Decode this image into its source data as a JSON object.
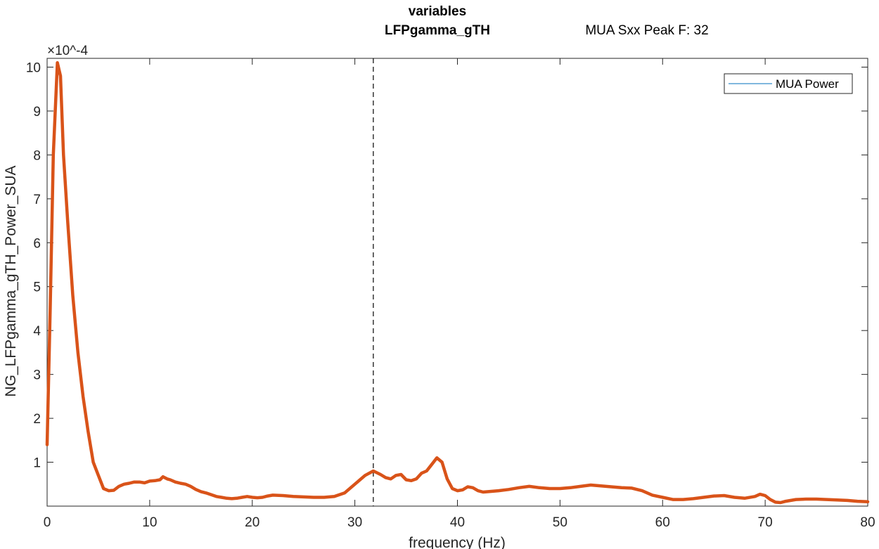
{
  "chart_data": {
    "type": "line",
    "title_lines": [
      "variables",
      "LFPgamma_gTH"
    ],
    "subtitle": "MUA Sxx Peak F: 32",
    "xlabel": "frequency (Hz)",
    "ylabel": "NG_LFPgamma_gTH_Power_SUA",
    "y_exponent_label": "×10^-4",
    "xlim": [
      0,
      80
    ],
    "ylim": [
      0,
      10.2
    ],
    "x_ticks": [
      0,
      10,
      20,
      30,
      40,
      50,
      60,
      70,
      80
    ],
    "y_ticks": [
      1,
      2,
      3,
      4,
      5,
      6,
      7,
      8,
      9,
      10
    ],
    "grid": false,
    "legend_position": "top-right",
    "legend": [
      {
        "label": "MUA Power",
        "color": "#0072BD"
      }
    ],
    "peak_marker_x": 31.8,
    "series": [
      {
        "color": "#D95319",
        "x": [
          0,
          0.3,
          0.6,
          1.0,
          1.3,
          1.6,
          2.0,
          2.5,
          3.0,
          3.5,
          4.0,
          4.5,
          5.0,
          5.5,
          6.0,
          6.5,
          7.0,
          7.5,
          8.0,
          8.5,
          9.0,
          9.5,
          10.0,
          10.5,
          11.0,
          11.3,
          11.7,
          12.0,
          12.5,
          13.0,
          13.5,
          14.0,
          14.5,
          15.0,
          15.5,
          16.0,
          16.5,
          17.0,
          17.5,
          18.0,
          18.5,
          19.0,
          19.5,
          20.0,
          20.5,
          21.0,
          21.5,
          22.0,
          23.0,
          24.0,
          25.0,
          26.0,
          27.0,
          28.0,
          29.0,
          30.0,
          31.0,
          31.8,
          32.5,
          33.0,
          33.5,
          34.0,
          34.5,
          35.0,
          35.5,
          36.0,
          36.5,
          37.0,
          37.5,
          38.0,
          38.5,
          39.0,
          39.5,
          40.0,
          40.5,
          41.0,
          41.5,
          42.0,
          42.5,
          43.0,
          44.0,
          45.0,
          46.0,
          47.0,
          48.0,
          49.0,
          50.0,
          51.0,
          52.0,
          53.0,
          54.0,
          55.0,
          56.0,
          57.0,
          58.0,
          59.0,
          60.0,
          61.0,
          62.0,
          63.0,
          64.0,
          65.0,
          66.0,
          67.0,
          68.0,
          69.0,
          69.5,
          70.0,
          70.5,
          71.0,
          71.5,
          72.0,
          73.0,
          74.0,
          75.0,
          76.0,
          77.0,
          78.0,
          79.0,
          80.0
        ],
        "y": [
          1.4,
          4.5,
          8.0,
          10.1,
          9.8,
          8.0,
          6.5,
          4.8,
          3.5,
          2.5,
          1.7,
          1.0,
          0.7,
          0.4,
          0.35,
          0.36,
          0.45,
          0.5,
          0.52,
          0.55,
          0.55,
          0.53,
          0.57,
          0.58,
          0.6,
          0.67,
          0.62,
          0.6,
          0.55,
          0.52,
          0.5,
          0.45,
          0.38,
          0.33,
          0.3,
          0.26,
          0.22,
          0.2,
          0.18,
          0.17,
          0.18,
          0.2,
          0.22,
          0.2,
          0.19,
          0.2,
          0.23,
          0.25,
          0.24,
          0.22,
          0.21,
          0.2,
          0.2,
          0.22,
          0.3,
          0.5,
          0.7,
          0.8,
          0.72,
          0.65,
          0.62,
          0.7,
          0.72,
          0.6,
          0.58,
          0.62,
          0.75,
          0.8,
          0.95,
          1.1,
          1.0,
          0.62,
          0.4,
          0.35,
          0.37,
          0.44,
          0.42,
          0.35,
          0.32,
          0.33,
          0.35,
          0.38,
          0.42,
          0.45,
          0.42,
          0.4,
          0.4,
          0.42,
          0.45,
          0.48,
          0.46,
          0.44,
          0.42,
          0.41,
          0.35,
          0.25,
          0.2,
          0.15,
          0.15,
          0.17,
          0.2,
          0.23,
          0.24,
          0.2,
          0.18,
          0.22,
          0.27,
          0.24,
          0.15,
          0.09,
          0.08,
          0.11,
          0.15,
          0.16,
          0.16,
          0.15,
          0.14,
          0.13,
          0.11,
          0.1
        ]
      }
    ]
  }
}
